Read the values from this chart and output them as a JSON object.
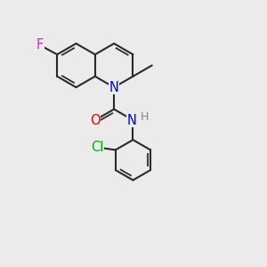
{
  "background_color": "#ebebeb",
  "bond_color": "#2a2a2a",
  "line_width": 1.5,
  "atom_colors": {
    "F": "#dd22dd",
    "N": "#0000ee",
    "O": "#ee0000",
    "Cl": "#00aa00",
    "H": "#888888",
    "C": "#2a2a2a"
  },
  "font_size": 9.5,
  "xlim": [
    0.0,
    10.0
  ],
  "ylim": [
    0.0,
    10.0
  ]
}
